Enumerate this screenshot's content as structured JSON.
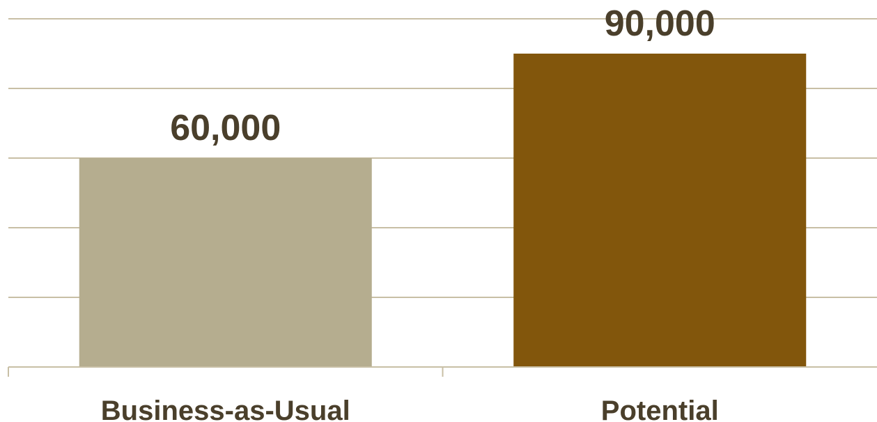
{
  "chart_data": {
    "type": "bar",
    "categories": [
      "Business-as-Usual",
      "Potential"
    ],
    "values": [
      60000,
      90000
    ],
    "value_labels": [
      "60,000",
      "90,000"
    ],
    "colors": [
      "#b5ad8f",
      "#82560c"
    ],
    "title": "",
    "xlabel": "",
    "ylabel": "",
    "ylim": [
      0,
      100000
    ],
    "grid": true,
    "legend": "none"
  }
}
